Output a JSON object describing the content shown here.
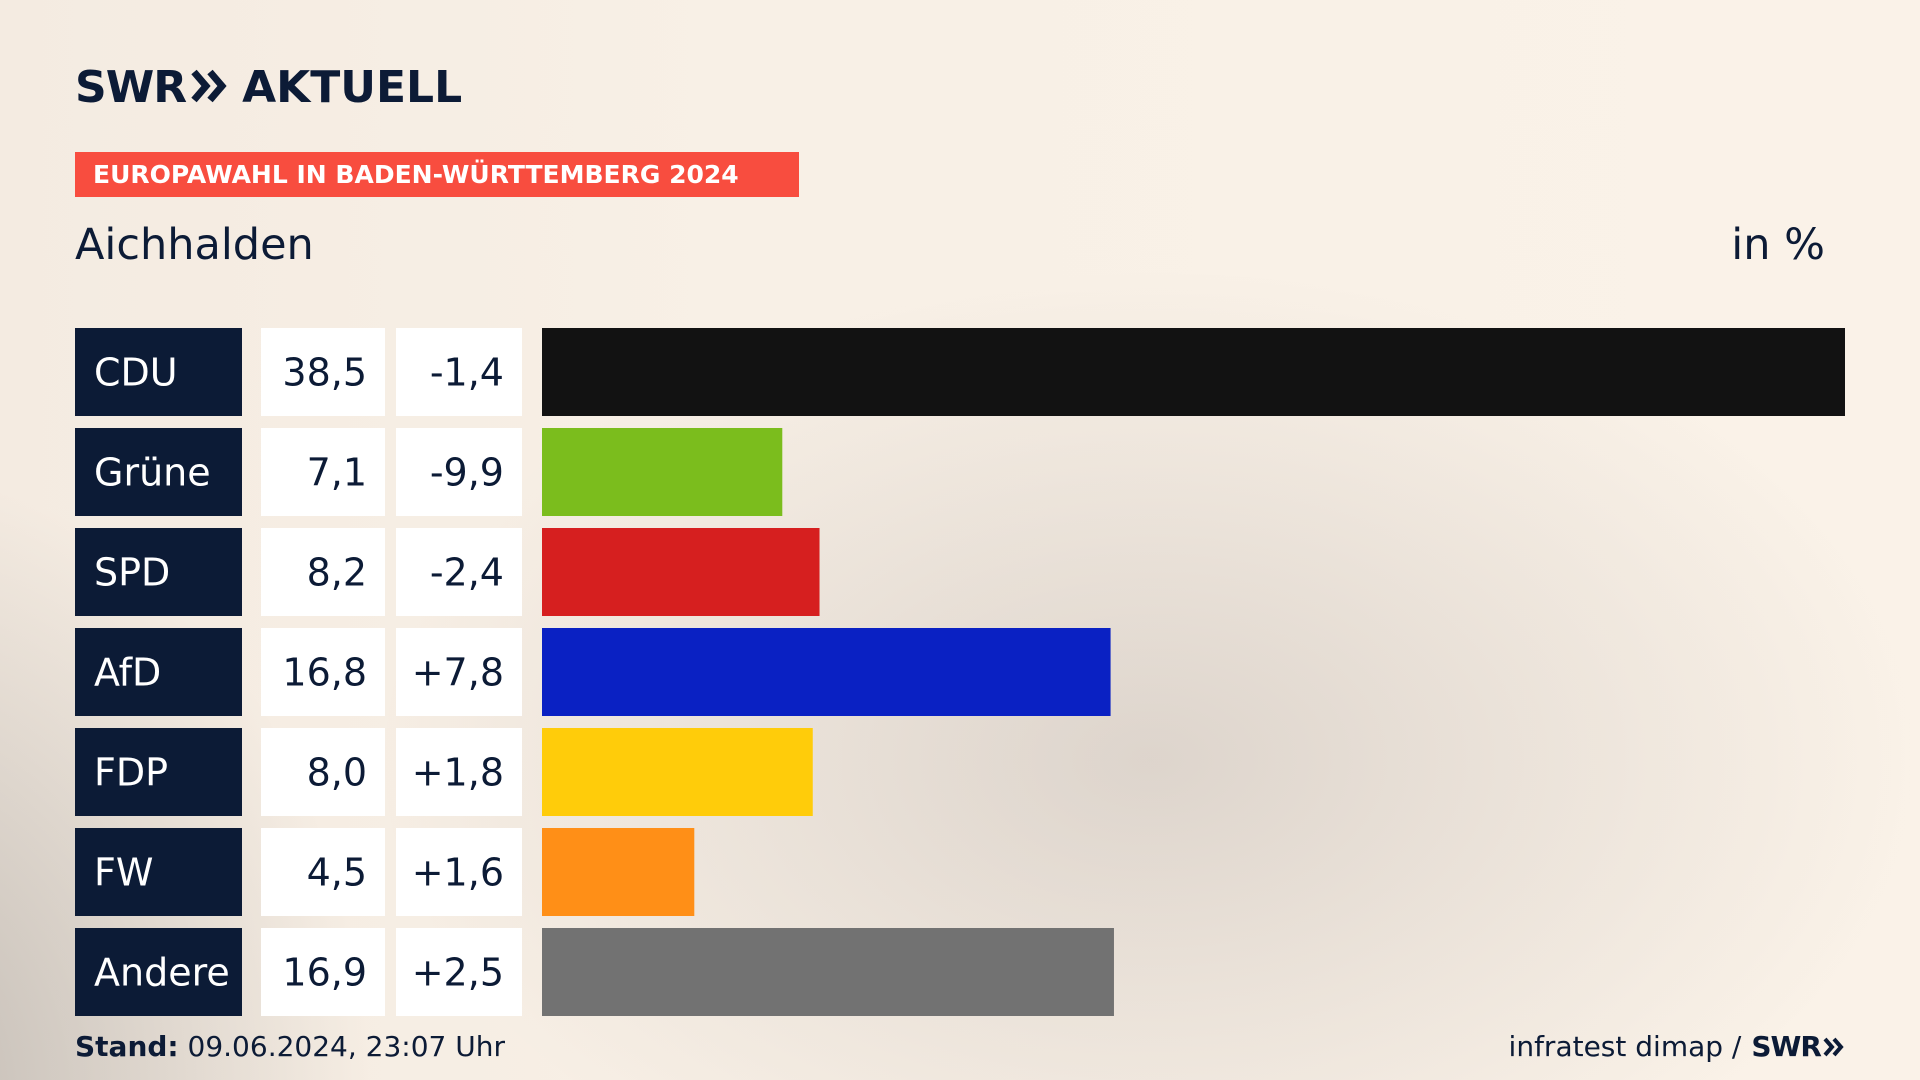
{
  "brand": {
    "logo_swr": "SWR",
    "logo_aktuell": "AKTUELL",
    "navy": "#0c1b36",
    "accent": "#f84d3f"
  },
  "banner": {
    "text": "EUROPAWAHL IN BADEN-WÜRTTEMBERG 2024"
  },
  "subtitle": "Aichhalden",
  "unit_label": "in %",
  "footer": {
    "stand_label": "Stand:",
    "stand_value": "09.06.2024, 23:07 Uhr",
    "source": "infratest dimap /",
    "source_brand": "SWR"
  },
  "chart_data": {
    "type": "bar",
    "orientation": "horizontal",
    "unit": "%",
    "categories": [
      "CDU",
      "Grüne",
      "SPD",
      "AfD",
      "FDP",
      "FW",
      "Andere"
    ],
    "values": [
      38.5,
      7.1,
      8.2,
      16.8,
      8.0,
      4.5,
      16.9
    ],
    "value_labels": [
      "38,5",
      "7,1",
      "8,2",
      "16,8",
      "8,0",
      "4,5",
      "16,9"
    ],
    "change_labels": [
      "-1,4",
      "-9,9",
      "-2,4",
      "+7,8",
      "+1,8",
      "+1,6",
      "+2,5"
    ],
    "changes": [
      -1.4,
      -9.9,
      -2.4,
      7.8,
      1.8,
      1.6,
      2.5
    ],
    "colors": [
      "#121212",
      "#7bbd1d",
      "#d61f1f",
      "#0a21c3",
      "#ffcc0a",
      "#ff8f17",
      "#727272"
    ],
    "xlim": [
      0,
      38.5
    ]
  }
}
